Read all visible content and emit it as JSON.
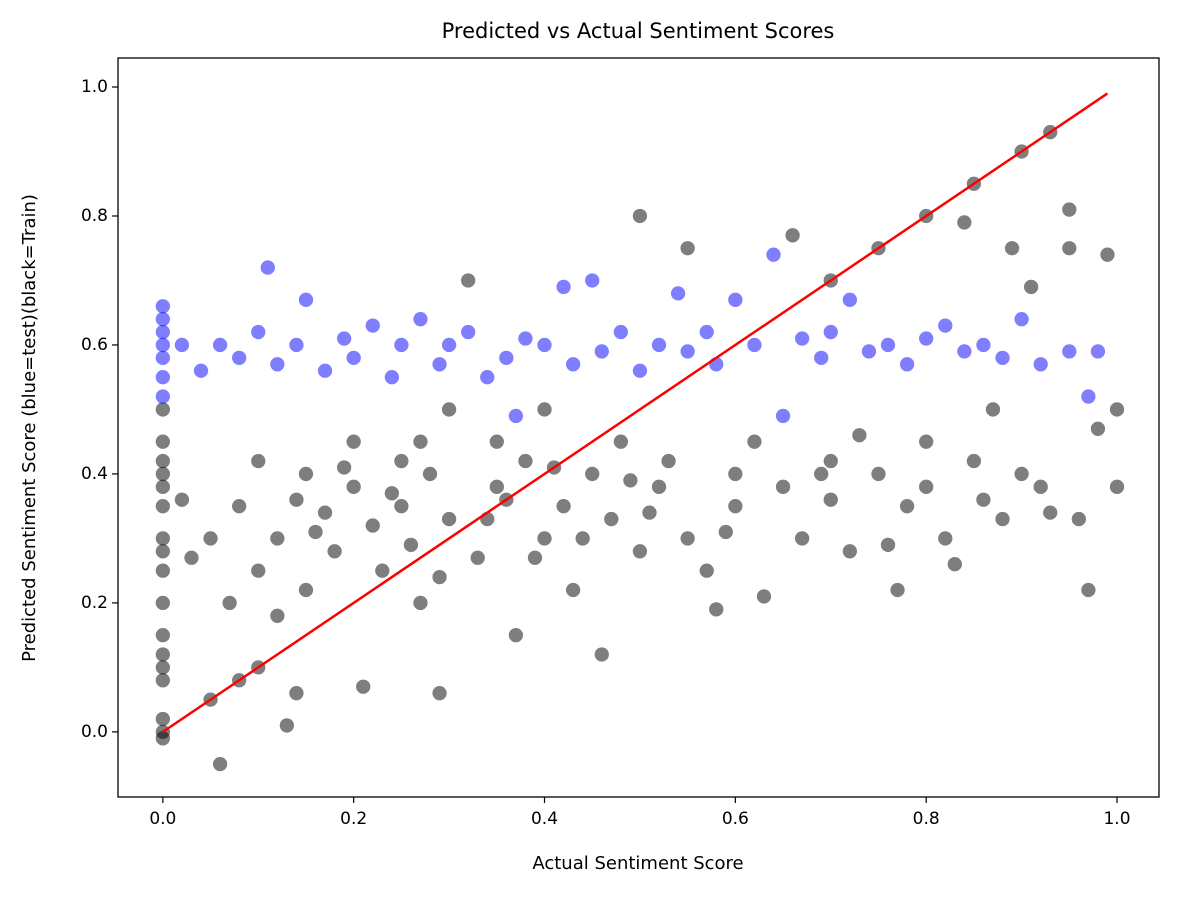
{
  "chart_data": {
    "type": "scatter",
    "title": "Predicted vs Actual Sentiment Scores",
    "x_label": "Actual Sentiment Score",
    "y_label": "Predicted Sentiment Score (blue=test)(black=Train)",
    "xlim": [
      -0.047,
      1.044
    ],
    "ylim": [
      -0.101,
      1.045
    ],
    "xticks": [
      {
        "value": 0,
        "label": "0.0"
      },
      {
        "value": 0.2,
        "label": "0.2"
      },
      {
        "value": 0.4,
        "label": "0.4"
      },
      {
        "value": 0.6,
        "label": "0.6"
      },
      {
        "value": 0.8,
        "label": "0.8"
      },
      {
        "value": 1,
        "label": "1.0"
      }
    ],
    "yticks": [
      {
        "value": 0,
        "label": "0.0"
      },
      {
        "value": 0.2,
        "label": "0.2"
      },
      {
        "value": 0.4,
        "label": "0.4"
      },
      {
        "value": 0.6,
        "label": "0.6"
      },
      {
        "value": 0.8,
        "label": "0.8"
      },
      {
        "value": 1,
        "label": "1.0"
      }
    ],
    "grid": false,
    "series": [
      {
        "color": "#000000",
        "alpha": 0.5,
        "x": [
          0,
          0,
          0,
          0,
          0,
          0,
          0,
          0,
          0,
          0,
          0,
          0,
          0,
          0,
          0,
          0,
          0,
          0.02,
          0.03,
          0.05,
          0.05,
          0.06,
          0.07,
          0.08,
          0.1,
          0.1,
          0.12,
          0.12,
          0.13,
          0.14,
          0.15,
          0.15,
          0.17,
          0.18,
          0.2,
          0.2,
          0.21,
          0.22,
          0.23,
          0.25,
          0.25,
          0.27,
          0.28,
          0.29,
          0.3,
          0.3,
          0.32,
          0.33,
          0.35,
          0.35,
          0.37,
          0.38,
          0.4,
          0.4,
          0.42,
          0.43,
          0.45,
          0.46,
          0.47,
          0.48,
          0.5,
          0.5,
          0.52,
          0.53,
          0.55,
          0.55,
          0.57,
          0.58,
          0.6,
          0.6,
          0.62,
          0.63,
          0.65,
          0.66,
          0.67,
          0.7,
          0.7,
          0.72,
          0.73,
          0.75,
          0.76,
          0.77,
          0.78,
          0.8,
          0.8,
          0.82,
          0.83,
          0.84,
          0.85,
          0.86,
          0.87,
          0.88,
          0.89,
          0.9,
          0.91,
          0.92,
          0.93,
          0.95,
          0.95,
          0.96,
          0.97,
          0.98,
          0.99,
          1.0,
          1.0,
          0.93,
          0.9,
          0.85,
          0.8,
          0.75,
          0.7,
          0.1,
          0.08,
          0.16,
          0.26,
          0.36,
          0.44,
          0.34,
          0.24,
          0.41,
          0.51,
          0.19,
          0.29,
          0.39,
          0.49,
          0.59,
          0.69,
          0.14,
          0.27
        ],
        "values": [
          0,
          -0.01,
          0.02,
          0.08,
          0.1,
          0.15,
          0.2,
          0.25,
          0.3,
          0.35,
          0.4,
          0.45,
          0.5,
          0.12,
          0.28,
          0.38,
          0.42,
          0.36,
          0.27,
          0.3,
          0.05,
          -0.05,
          0.2,
          0.35,
          0.25,
          0.42,
          0.3,
          0.18,
          0.01,
          0.06,
          0.4,
          0.22,
          0.34,
          0.28,
          0.45,
          0.38,
          0.07,
          0.32,
          0.25,
          0.42,
          0.35,
          0.2,
          0.4,
          0.06,
          0.33,
          0.5,
          0.7,
          0.27,
          0.45,
          0.38,
          0.15,
          0.42,
          0.3,
          0.5,
          0.35,
          0.22,
          0.4,
          0.12,
          0.33,
          0.45,
          0.8,
          0.28,
          0.38,
          0.42,
          0.3,
          0.75,
          0.25,
          0.19,
          0.4,
          0.35,
          0.45,
          0.21,
          0.38,
          0.77,
          0.3,
          0.42,
          0.36,
          0.28,
          0.46,
          0.4,
          0.29,
          0.22,
          0.35,
          0.45,
          0.38,
          0.3,
          0.26,
          0.79,
          0.42,
          0.36,
          0.5,
          0.33,
          0.75,
          0.4,
          0.69,
          0.38,
          0.34,
          0.81,
          0.75,
          0.33,
          0.22,
          0.47,
          0.74,
          0.5,
          0.38,
          0.93,
          0.9,
          0.85,
          0.8,
          0.75,
          0.7,
          0.1,
          0.08,
          0.31,
          0.29,
          0.36,
          0.3,
          0.33,
          0.37,
          0.41,
          0.34,
          0.41,
          0.24,
          0.27,
          0.39,
          0.31,
          0.4,
          0.36,
          0.45
        ]
      },
      {
        "color": "#0000ff",
        "alpha": 0.5,
        "x": [
          0,
          0,
          0,
          0,
          0,
          0,
          0,
          0.02,
          0.04,
          0.06,
          0.08,
          0.1,
          0.11,
          0.12,
          0.14,
          0.15,
          0.17,
          0.19,
          0.2,
          0.22,
          0.24,
          0.25,
          0.27,
          0.29,
          0.3,
          0.32,
          0.34,
          0.36,
          0.37,
          0.38,
          0.4,
          0.42,
          0.43,
          0.45,
          0.46,
          0.48,
          0.5,
          0.52,
          0.54,
          0.55,
          0.57,
          0.58,
          0.6,
          0.62,
          0.64,
          0.65,
          0.67,
          0.69,
          0.7,
          0.72,
          0.74,
          0.76,
          0.78,
          0.8,
          0.82,
          0.84,
          0.86,
          0.88,
          0.9,
          0.92,
          0.95,
          0.98,
          0.97
        ],
        "values": [
          0.52,
          0.55,
          0.58,
          0.6,
          0.62,
          0.64,
          0.66,
          0.6,
          0.56,
          0.6,
          0.58,
          0.62,
          0.72,
          0.57,
          0.6,
          0.67,
          0.56,
          0.61,
          0.58,
          0.63,
          0.55,
          0.6,
          0.64,
          0.57,
          0.6,
          0.62,
          0.55,
          0.58,
          0.49,
          0.61,
          0.6,
          0.69,
          0.57,
          0.7,
          0.59,
          0.62,
          0.56,
          0.6,
          0.68,
          0.59,
          0.62,
          0.57,
          0.67,
          0.6,
          0.74,
          0.49,
          0.61,
          0.58,
          0.62,
          0.67,
          0.59,
          0.6,
          0.57,
          0.61,
          0.63,
          0.59,
          0.6,
          0.58,
          0.64,
          0.57,
          0.59,
          0.59,
          0.52
        ]
      },
      {
        "type": "line",
        "color": "#ff0000",
        "x": [
          0,
          0.99
        ],
        "values": [
          0,
          0.99
        ]
      }
    ]
  }
}
